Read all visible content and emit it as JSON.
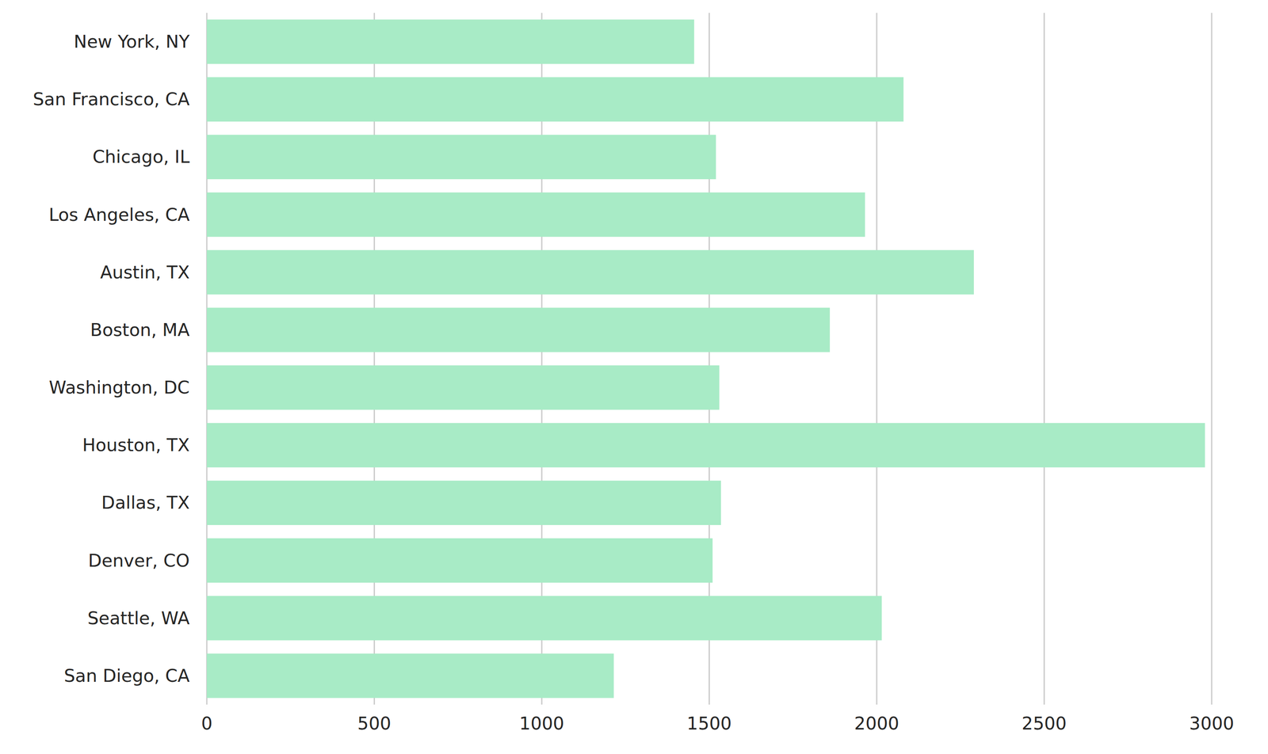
{
  "chart_data": {
    "type": "bar",
    "orientation": "horizontal",
    "categories": [
      "New York, NY",
      "San Francisco, CA",
      "Chicago, IL",
      "Los Angeles, CA",
      "Austin, TX",
      "Boston, MA",
      "Washington, DC",
      "Houston, TX",
      "Dallas, TX",
      "Denver, CO",
      "Seattle, WA",
      "San Diego, CA"
    ],
    "values": [
      1455,
      2080,
      1520,
      1965,
      2290,
      1860,
      1530,
      2980,
      1535,
      1510,
      2015,
      1215
    ],
    "color": "#a8ebc6",
    "xlim": [
      0,
      3000
    ],
    "xticks": [
      0,
      500,
      1000,
      1500,
      2000,
      2500,
      3000
    ],
    "grid": true
  }
}
